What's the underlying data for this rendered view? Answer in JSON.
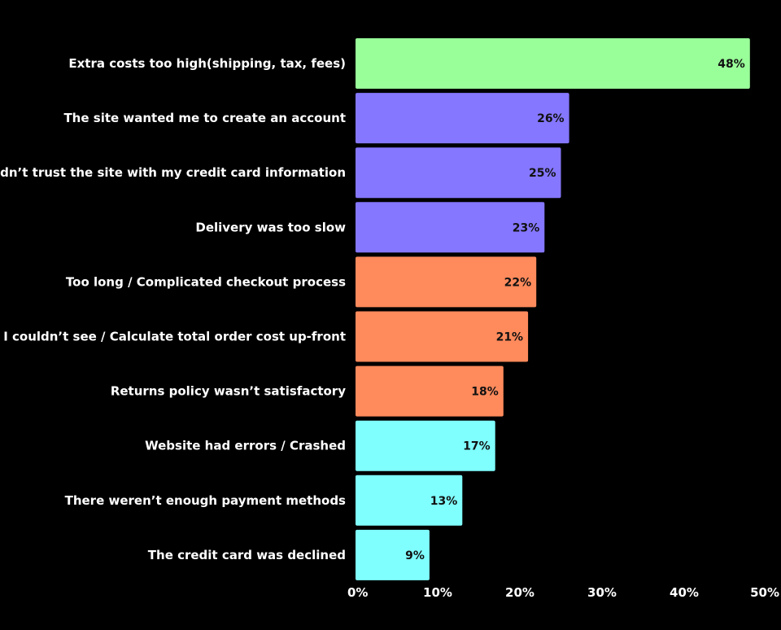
{
  "chart_data": {
    "type": "bar",
    "orientation": "horizontal",
    "title": "",
    "xlabel": "",
    "ylabel": "",
    "xlim": [
      0,
      50
    ],
    "grid": false,
    "legend": "none",
    "categories": [
      "Extra costs too high(shipping, tax, fees)",
      "The site wanted me to create an account",
      "I didn’t trust the site with my credit card information",
      "Delivery was too slow",
      "Too long / Complicated checkout process",
      "I couldn’t see / Calculate total order cost up-front",
      "Returns policy wasn’t satisfactory",
      "Website had errors / Crashed",
      "There weren’t enough payment methods",
      "The credit card was declined"
    ],
    "values": [
      48,
      26,
      25,
      23,
      22,
      21,
      18,
      17,
      13,
      9
    ],
    "value_labels": [
      "48%",
      "26%",
      "25%",
      "23%",
      "22%",
      "21%",
      "18%",
      "17%",
      "13%",
      "9%"
    ],
    "bar_colors": [
      "#99ff99",
      "#8577ff",
      "#8577ff",
      "#8577ff",
      "#ff8a5c",
      "#ff8a5c",
      "#ff8a5c",
      "#80ffff",
      "#80ffff",
      "#80ffff"
    ],
    "x_ticks": [
      0,
      10,
      20,
      30,
      40,
      50
    ],
    "x_tick_labels": [
      "0%",
      "10%",
      "20%",
      "30%",
      "40%",
      "50%"
    ]
  },
  "colors": {
    "background": "#000000",
    "text": "#ffffff",
    "value_text": "#111111"
  }
}
